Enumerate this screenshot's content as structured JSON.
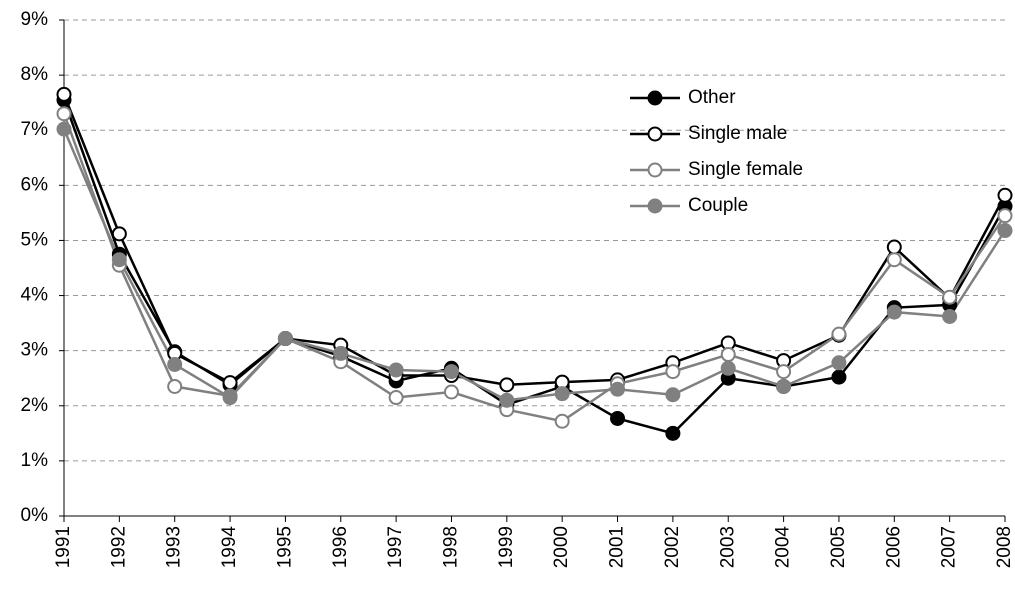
{
  "chart_data": {
    "type": "line",
    "categories": [
      "1991",
      "1992",
      "1993",
      "1994",
      "1995",
      "1996",
      "1997",
      "1998",
      "1999",
      "2000",
      "2001",
      "2002",
      "2003",
      "2004",
      "2005",
      "2006",
      "2007",
      "2008"
    ],
    "series": [
      {
        "name": "Other",
        "color": "#000000",
        "marker": "filled",
        "values": [
          7.55,
          4.75,
          2.98,
          2.38,
          3.22,
          2.9,
          2.45,
          2.68,
          2.02,
          2.35,
          1.77,
          1.5,
          2.5,
          2.35,
          2.52,
          3.78,
          3.83,
          5.62
        ]
      },
      {
        "name": "Single male",
        "color": "#000000",
        "marker": "hollow",
        "values": [
          7.65,
          5.12,
          2.95,
          2.42,
          3.22,
          3.1,
          2.55,
          2.55,
          2.38,
          2.43,
          2.47,
          2.78,
          3.14,
          2.82,
          3.28,
          4.88,
          3.95,
          5.82
        ]
      },
      {
        "name": "Single female",
        "color": "#808080",
        "marker": "hollow",
        "values": [
          7.3,
          4.55,
          2.35,
          2.18,
          3.22,
          2.8,
          2.15,
          2.25,
          1.93,
          1.72,
          2.4,
          2.62,
          2.93,
          2.62,
          3.3,
          4.65,
          3.97,
          5.45
        ]
      },
      {
        "name": "Couple",
        "color": "#808080",
        "marker": "filled",
        "values": [
          7.02,
          4.65,
          2.75,
          2.15,
          3.22,
          2.95,
          2.65,
          2.62,
          2.1,
          2.22,
          2.3,
          2.2,
          2.68,
          2.35,
          2.78,
          3.7,
          3.62,
          5.18
        ]
      }
    ],
    "ylim": [
      0,
      9
    ],
    "yticks": [
      {
        "value": 0,
        "label": "0%"
      },
      {
        "value": 1,
        "label": "1%"
      },
      {
        "value": 2,
        "label": "2%"
      },
      {
        "value": 3,
        "label": "3%"
      },
      {
        "value": 4,
        "label": "4%"
      },
      {
        "value": 5,
        "label": "5%"
      },
      {
        "value": 6,
        "label": "6%"
      },
      {
        "value": 7,
        "label": "7%"
      },
      {
        "value": 8,
        "label": "8%"
      },
      {
        "value": 9,
        "label": "9%"
      }
    ],
    "grid": true,
    "legend_position": "upper right"
  }
}
